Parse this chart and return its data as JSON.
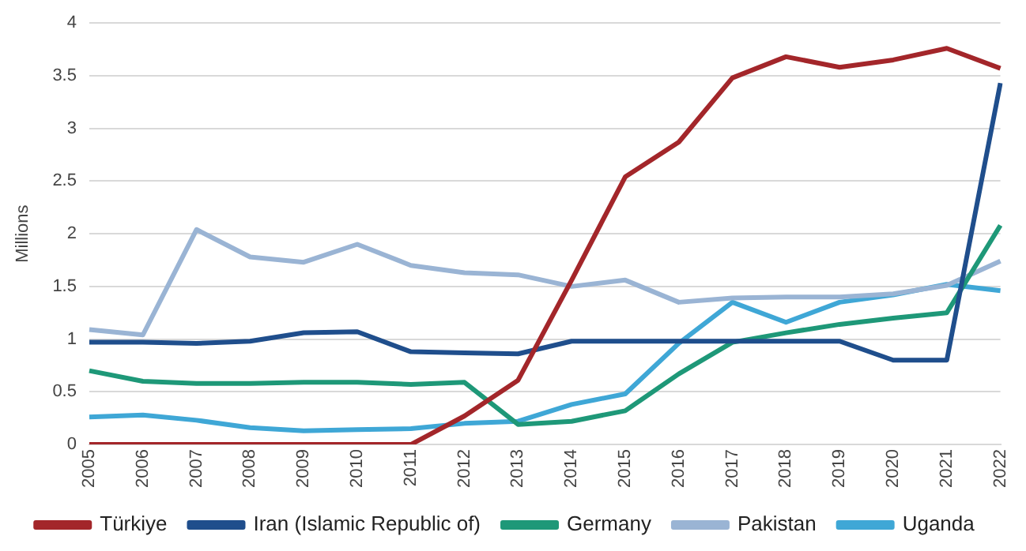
{
  "chart_data": {
    "type": "line",
    "ylabel": "Millions",
    "categories": [
      "2005",
      "2006",
      "2007",
      "2008",
      "2009",
      "2010",
      "2011",
      "2012",
      "2013",
      "2014",
      "2015",
      "2016",
      "2017",
      "2018",
      "2019",
      "2020",
      "2021",
      "2022"
    ],
    "series": [
      {
        "name": "Türkiye",
        "color": "#a3262a",
        "values": [
          0,
          0,
          0,
          0,
          0,
          0,
          0,
          0.27,
          0.61,
          1.56,
          2.54,
          2.87,
          3.48,
          3.68,
          3.58,
          3.65,
          3.76,
          3.57
        ]
      },
      {
        "name": "Iran (Islamic Republic of)",
        "color": "#1f4e8c",
        "values": [
          0.97,
          0.97,
          0.96,
          0.98,
          1.06,
          1.07,
          0.88,
          0.87,
          0.86,
          0.98,
          0.98,
          0.98,
          0.98,
          0.98,
          0.98,
          0.8,
          0.8,
          3.43
        ]
      },
      {
        "name": "Germany",
        "color": "#1e9878",
        "values": [
          0.7,
          0.6,
          0.58,
          0.58,
          0.59,
          0.59,
          0.57,
          0.59,
          0.19,
          0.22,
          0.32,
          0.67,
          0.97,
          1.06,
          1.14,
          1.2,
          1.25,
          2.08
        ]
      },
      {
        "name": "Pakistan",
        "color": "#9ab4d4",
        "values": [
          1.09,
          1.04,
          2.04,
          1.78,
          1.73,
          1.9,
          1.7,
          1.63,
          1.61,
          1.5,
          1.56,
          1.35,
          1.39,
          1.4,
          1.4,
          1.43,
          1.51,
          1.74
        ]
      },
      {
        "name": "Uganda",
        "color": "#3fa7d6",
        "values": [
          0.26,
          0.28,
          0.23,
          0.16,
          0.13,
          0.14,
          0.15,
          0.2,
          0.22,
          0.38,
          0.48,
          0.96,
          1.35,
          1.16,
          1.35,
          1.42,
          1.52,
          1.46
        ]
      }
    ],
    "ylim": [
      0,
      4
    ],
    "yticks": [
      0,
      0.5,
      1,
      1.5,
      2,
      2.5,
      3,
      3.5,
      4
    ],
    "grid": "y",
    "legend": "bottom",
    "marker": "none",
    "line_style": "solid"
  }
}
